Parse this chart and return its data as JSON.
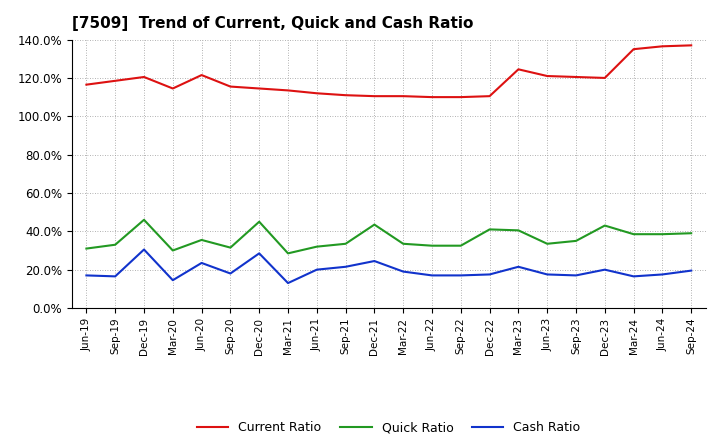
{
  "title": "[7509]  Trend of Current, Quick and Cash Ratio",
  "labels": [
    "Jun-19",
    "Sep-19",
    "Dec-19",
    "Mar-20",
    "Jun-20",
    "Sep-20",
    "Dec-20",
    "Mar-21",
    "Jun-21",
    "Sep-21",
    "Dec-21",
    "Mar-22",
    "Jun-22",
    "Sep-22",
    "Dec-22",
    "Mar-23",
    "Jun-23",
    "Sep-23",
    "Dec-23",
    "Mar-24",
    "Jun-24",
    "Sep-24"
  ],
  "current_ratio": [
    116.5,
    118.5,
    120.5,
    114.5,
    121.5,
    115.5,
    114.5,
    113.5,
    112.0,
    111.0,
    110.5,
    110.5,
    110.0,
    110.0,
    110.5,
    124.5,
    121.0,
    120.5,
    120.0,
    135.0,
    136.5,
    137.0
  ],
  "quick_ratio": [
    31.0,
    33.0,
    46.0,
    30.0,
    35.5,
    31.5,
    45.0,
    28.5,
    32.0,
    33.5,
    43.5,
    33.5,
    32.5,
    32.5,
    41.0,
    40.5,
    33.5,
    35.0,
    43.0,
    38.5,
    38.5,
    39.0
  ],
  "cash_ratio": [
    17.0,
    16.5,
    30.5,
    14.5,
    23.5,
    18.0,
    28.5,
    13.0,
    20.0,
    21.5,
    24.5,
    19.0,
    17.0,
    17.0,
    17.5,
    21.5,
    17.5,
    17.0,
    20.0,
    16.5,
    17.5,
    19.5
  ],
  "current_color": "#dd1111",
  "quick_color": "#229922",
  "cash_color": "#1133cc",
  "ylim": [
    0,
    140
  ],
  "yticks": [
    0,
    20,
    40,
    60,
    80,
    100,
    120,
    140
  ],
  "background_color": "#ffffff",
  "grid_color": "#999999"
}
